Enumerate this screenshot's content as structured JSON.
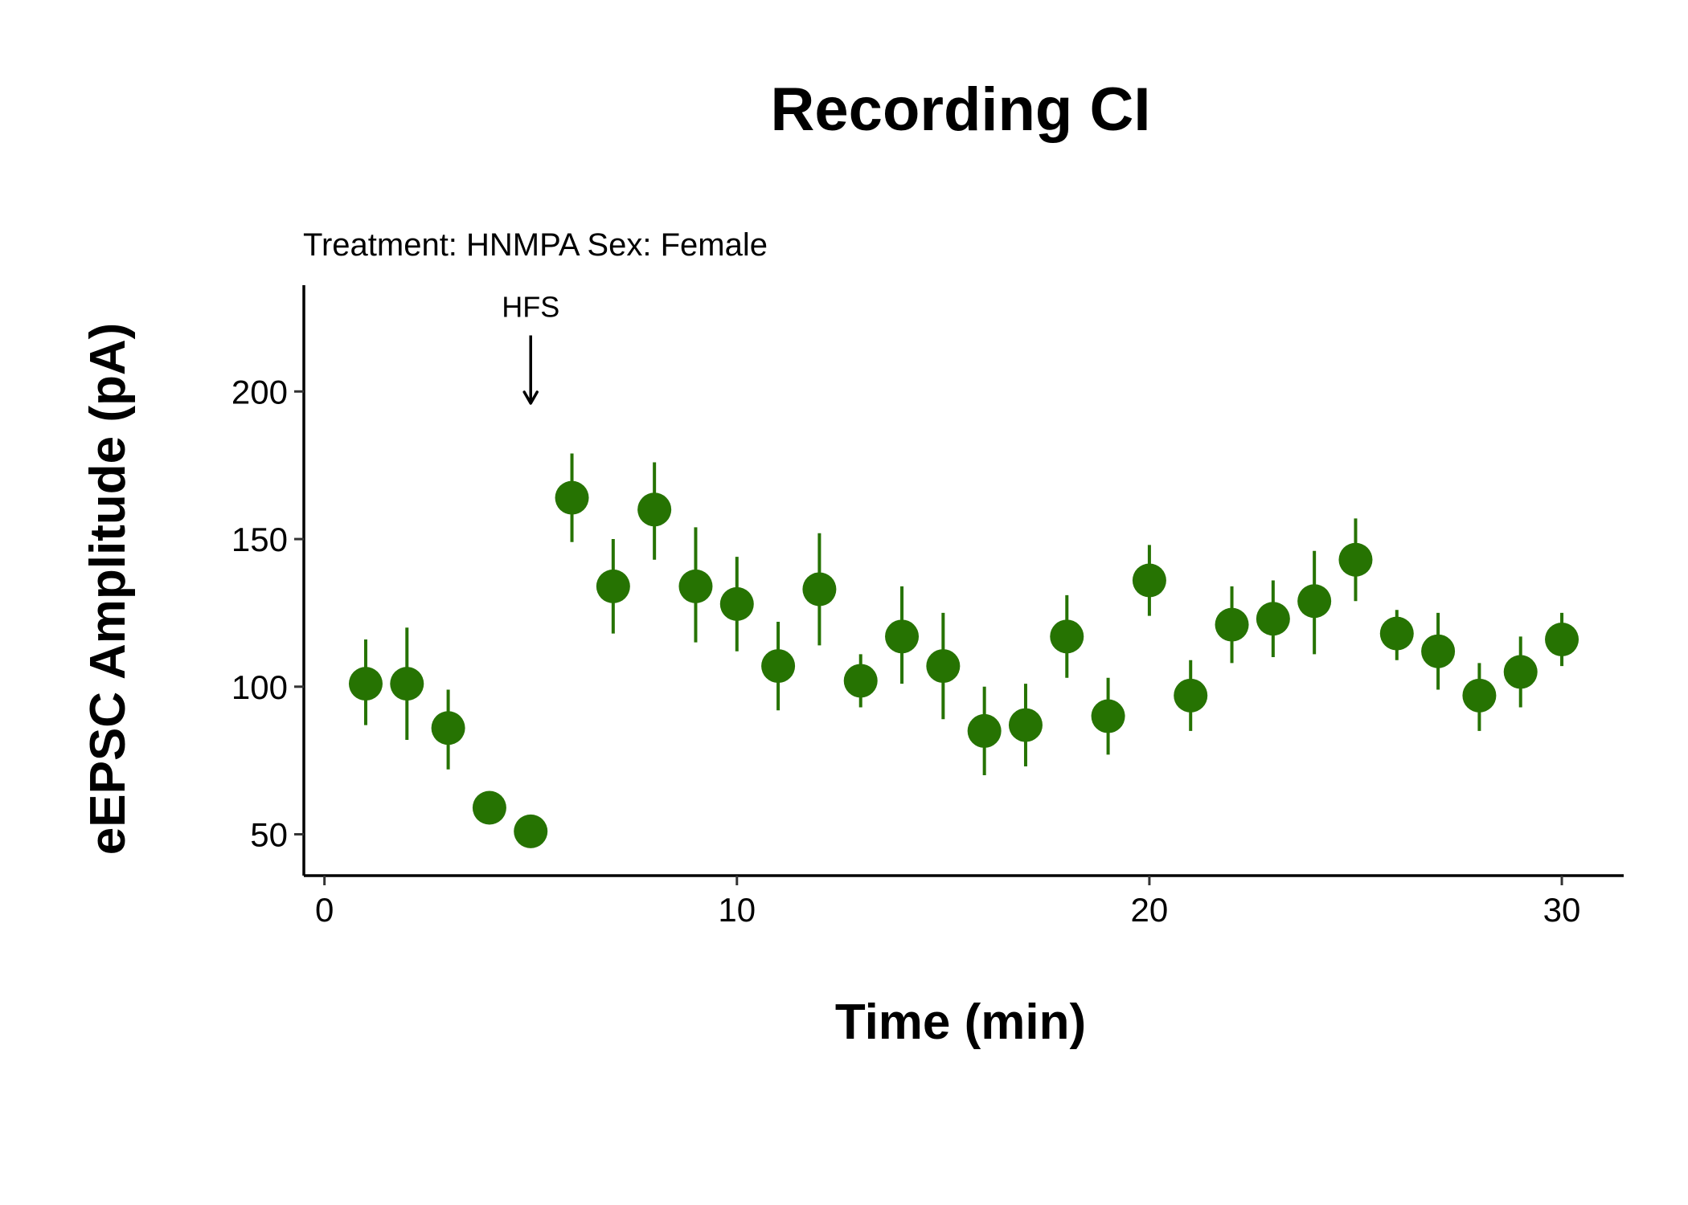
{
  "chart_data": {
    "type": "scatter",
    "title": "Recording CI",
    "subtitle": "Treatment: HNMPA  Sex: Female",
    "xlabel": "Time (min)",
    "ylabel": "eEPSC Amplitude (pA)",
    "xlim": [
      -0.5,
      31.5
    ],
    "ylim": [
      36,
      236
    ],
    "x_ticks": [
      0,
      10,
      20,
      30
    ],
    "y_ticks": [
      50,
      100,
      150,
      200
    ],
    "grid": false,
    "point_color": "#267302",
    "annotation": {
      "label": "HFS",
      "x": 5,
      "y_from": 219,
      "y_to": 196
    },
    "points": [
      {
        "x": 1,
        "y": 101,
        "lower": 87,
        "upper": 116
      },
      {
        "x": 2,
        "y": 101,
        "lower": 82,
        "upper": 120
      },
      {
        "x": 3,
        "y": 86,
        "lower": 72,
        "upper": 99
      },
      {
        "x": 4,
        "y": 59,
        "lower": null,
        "upper": null
      },
      {
        "x": 5,
        "y": 51,
        "lower": null,
        "upper": null
      },
      {
        "x": 6,
        "y": 164,
        "lower": 149,
        "upper": 179
      },
      {
        "x": 7,
        "y": 134,
        "lower": 118,
        "upper": 150
      },
      {
        "x": 8,
        "y": 160,
        "lower": 143,
        "upper": 176
      },
      {
        "x": 9,
        "y": 134,
        "lower": 115,
        "upper": 154
      },
      {
        "x": 10,
        "y": 128,
        "lower": 112,
        "upper": 144
      },
      {
        "x": 11,
        "y": 107,
        "lower": 92,
        "upper": 122
      },
      {
        "x": 12,
        "y": 133,
        "lower": 114,
        "upper": 152
      },
      {
        "x": 13,
        "y": 102,
        "lower": 93,
        "upper": 111
      },
      {
        "x": 14,
        "y": 117,
        "lower": 101,
        "upper": 134
      },
      {
        "x": 15,
        "y": 107,
        "lower": 89,
        "upper": 125
      },
      {
        "x": 16,
        "y": 85,
        "lower": 70,
        "upper": 100
      },
      {
        "x": 17,
        "y": 87,
        "lower": 73,
        "upper": 101
      },
      {
        "x": 18,
        "y": 117,
        "lower": 103,
        "upper": 131
      },
      {
        "x": 19,
        "y": 90,
        "lower": 77,
        "upper": 103
      },
      {
        "x": 20,
        "y": 136,
        "lower": 124,
        "upper": 148
      },
      {
        "x": 21,
        "y": 97,
        "lower": 85,
        "upper": 109
      },
      {
        "x": 22,
        "y": 121,
        "lower": 108,
        "upper": 134
      },
      {
        "x": 23,
        "y": 123,
        "lower": 110,
        "upper": 136
      },
      {
        "x": 24,
        "y": 129,
        "lower": 111,
        "upper": 146
      },
      {
        "x": 25,
        "y": 143,
        "lower": 129,
        "upper": 157
      },
      {
        "x": 26,
        "y": 118,
        "lower": 109,
        "upper": 126
      },
      {
        "x": 27,
        "y": 112,
        "lower": 99,
        "upper": 125
      },
      {
        "x": 28,
        "y": 97,
        "lower": 85,
        "upper": 108
      },
      {
        "x": 29,
        "y": 105,
        "lower": 93,
        "upper": 117
      },
      {
        "x": 30,
        "y": 116,
        "lower": 107,
        "upper": 125
      }
    ]
  }
}
